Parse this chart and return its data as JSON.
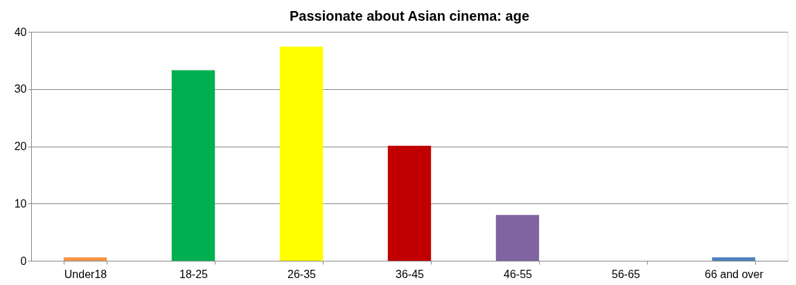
{
  "chart_data": {
    "type": "bar",
    "title": "Passionate about Asian cinema: age",
    "categories": [
      "Under18",
      "18-25",
      "26-35",
      "36-45",
      "46-55",
      "56-65",
      "66 and over"
    ],
    "values": [
      0.6,
      33.3,
      37.4,
      20.1,
      8.0,
      0,
      0.6
    ],
    "colors": [
      "#f79646",
      "#00b050",
      "#ffff00",
      "#c00000",
      "#8064a2",
      "#4bacc6",
      "#4f81bd"
    ],
    "ylim": [
      0,
      40
    ],
    "yticks": [
      0,
      10,
      20,
      30,
      40
    ],
    "grid": "y"
  }
}
